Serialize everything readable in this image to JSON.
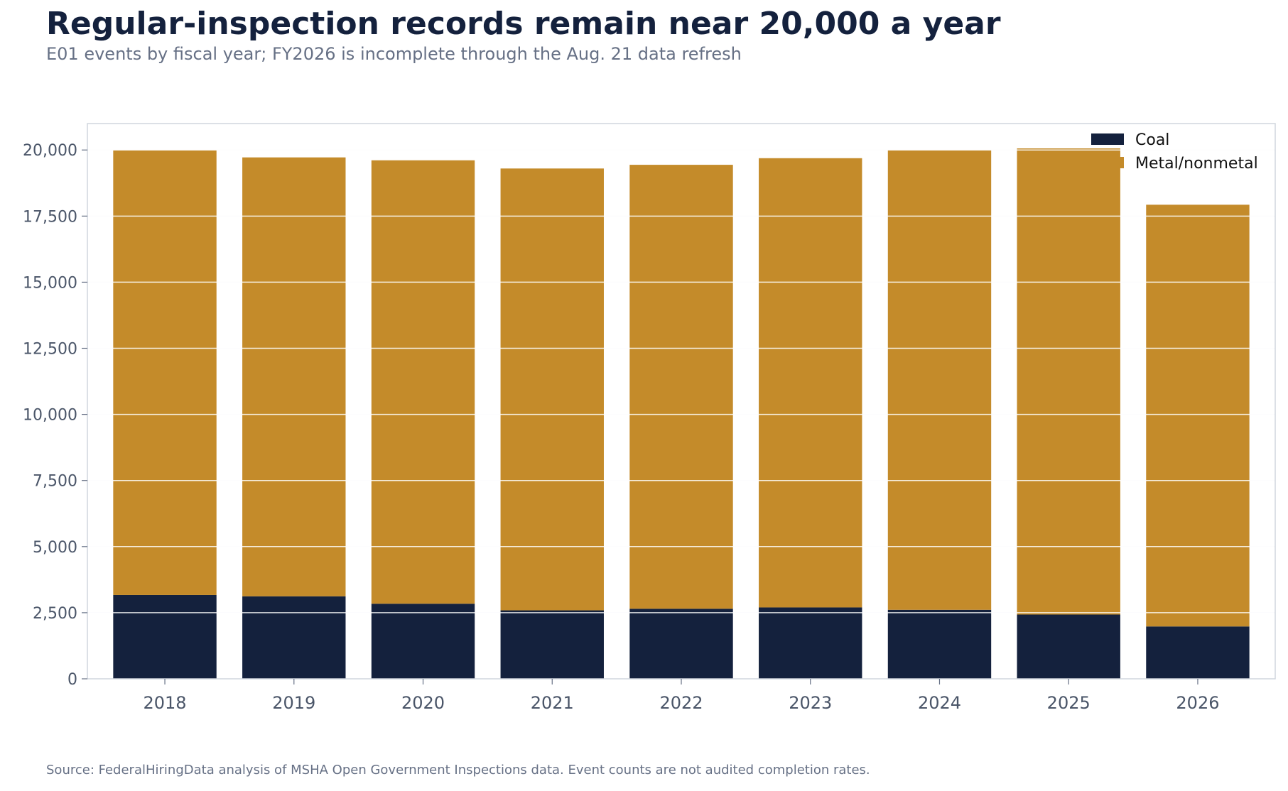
{
  "title": "Regular-inspection records remain near 20,000 a year",
  "subtitle": "E01 events by fiscal year; FY2026 is incomplete through the Aug. 21 data refresh",
  "source": "Source: FederalHiringData analysis of MSHA Open Government Inspections data. Event counts are not audited completion rates.",
  "chart_data": {
    "type": "bar",
    "stacked": true,
    "categories": [
      "2018",
      "2019",
      "2020",
      "2021",
      "2022",
      "2023",
      "2024",
      "2025",
      "2026"
    ],
    "series": [
      {
        "name": "Coal",
        "color": "#14213d",
        "values": [
          3170,
          3120,
          2840,
          2590,
          2650,
          2700,
          2610,
          2430,
          1980
        ]
      },
      {
        "name": "Metal/nonmetal",
        "color": "#c48b2a",
        "values": [
          16830,
          16600,
          16770,
          16710,
          16790,
          16990,
          17390,
          17630,
          15950
        ]
      }
    ],
    "ylim": [
      0,
      21000
    ],
    "yticks": [
      0,
      2500,
      5000,
      7500,
      10000,
      12500,
      15000,
      17500,
      20000
    ],
    "ytick_labels": [
      "0",
      "2,500",
      "5,000",
      "7,500",
      "10,000",
      "12,500",
      "15,000",
      "17,500",
      "20,000"
    ],
    "xlabel": "",
    "ylabel": "",
    "grid": true,
    "legend_position": "top-right"
  }
}
